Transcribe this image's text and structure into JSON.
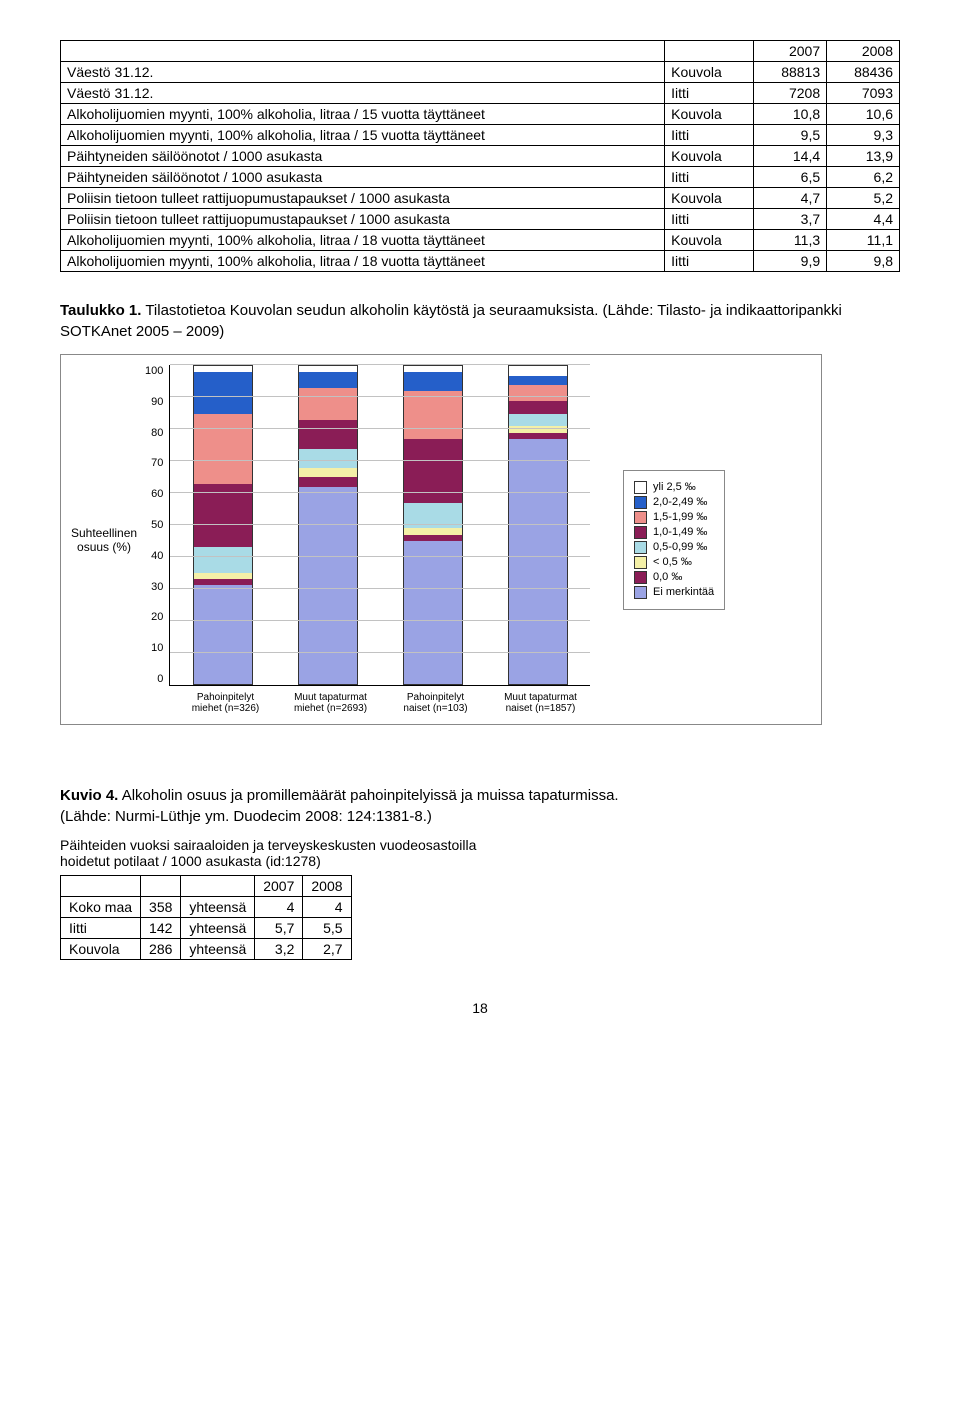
{
  "table1": {
    "year_cols": [
      "2007",
      "2008"
    ],
    "rows": [
      {
        "label": "Väestö 31.12.",
        "place": "Kouvola",
        "v1": "88813",
        "v2": "88436"
      },
      {
        "label": "Väestö 31.12.",
        "place": "Iitti",
        "v1": "7208",
        "v2": "7093"
      },
      {
        "label": "Alkoholijuomien myynti, 100% alkoholia, litraa / 15 vuotta täyttäneet",
        "place": "Kouvola",
        "v1": "10,8",
        "v2": "10,6"
      },
      {
        "label": "Alkoholijuomien myynti, 100% alkoholia, litraa / 15 vuotta täyttäneet",
        "place": "Iitti",
        "v1": "9,5",
        "v2": "9,3"
      },
      {
        "label": "Päihtyneiden säilöönotot / 1000 asukasta",
        "place": "Kouvola",
        "v1": "14,4",
        "v2": "13,9"
      },
      {
        "label": "Päihtyneiden säilöönotot / 1000 asukasta",
        "place": "Iitti",
        "v1": "6,5",
        "v2": "6,2"
      },
      {
        "label": "Poliisin tietoon tulleet rattijuopumustapaukset / 1000 asukasta",
        "place": "Kouvola",
        "v1": "4,7",
        "v2": "5,2"
      },
      {
        "label": "Poliisin tietoon tulleet rattijuopumustapaukset / 1000 asukasta",
        "place": "Iitti",
        "v1": "3,7",
        "v2": "4,4"
      },
      {
        "label": "Alkoholijuomien myynti, 100% alkoholia, litraa / 18 vuotta täyttäneet",
        "place": "Kouvola",
        "v1": "11,3",
        "v2": "11,1"
      },
      {
        "label": "Alkoholijuomien myynti, 100% alkoholia, litraa / 18 vuotta täyttäneet",
        "place": "Iitti",
        "v1": "9,9",
        "v2": "9,8"
      }
    ]
  },
  "caption1": {
    "bold": "Taulukko 1.",
    "text": " Tilastotietoa Kouvolan seudun alkoholin käytöstä ja seuraamuksista. (Lähde: Tilasto- ja indikaattoripankki SOTKAnet 2005 – 2009)"
  },
  "chart": {
    "ylabel": "Suhteellinen\nosuus (%)",
    "ymax": 100,
    "ytick_step": 10,
    "categories": [
      "Pahoinpitelyt miehet (n=326)",
      "Muut tapaturmat miehet (n=2693)",
      "Pahoinpitelyt naiset (n=103)",
      "Muut tapaturmat naiset (n=1857)"
    ],
    "legend": [
      {
        "label": "yli 2,5 ‰",
        "color": "#ffffff"
      },
      {
        "label": "2,0-2,49 ‰",
        "color": "#255fc9"
      },
      {
        "label": "1,5-1,99 ‰",
        "color": "#ee8f8a"
      },
      {
        "label": "1,0-1,49 ‰",
        "color": "#8a1d56"
      },
      {
        "label": "0,5-0,99 ‰",
        "color": "#a9dbe6"
      },
      {
        "label": "< 0,5 ‰",
        "color": "#f4f0a7"
      },
      {
        "label": "0,0 ‰",
        "color": "#8a1d56"
      },
      {
        "label": "Ei merkintää",
        "color": "#9aa3e4"
      }
    ],
    "series_order": [
      "ei",
      "zero",
      "lt05",
      "p05_099",
      "p10_149",
      "p15_199",
      "p20_249",
      "yli25"
    ],
    "series_colors": {
      "ei": "#9aa3e4",
      "zero": "#8a1d56",
      "lt05": "#f4f0a7",
      "p05_099": "#a9dbe6",
      "p10_149": "#8a1d56",
      "p15_199": "#ee8f8a",
      "p20_249": "#255fc9",
      "yli25": "#ffffff"
    },
    "data": [
      {
        "ei": 31,
        "zero": 2,
        "lt05": 2,
        "p05_099": 8,
        "p10_149": 20,
        "p15_199": 22,
        "p20_249": 13,
        "yli25": 2
      },
      {
        "ei": 62,
        "zero": 3,
        "lt05": 3,
        "p05_099": 6,
        "p10_149": 9,
        "p15_199": 10,
        "p20_249": 5,
        "yli25": 2
      },
      {
        "ei": 45,
        "zero": 2,
        "lt05": 2,
        "p05_099": 8,
        "p10_149": 20,
        "p15_199": 15,
        "p20_249": 6,
        "yli25": 2
      },
      {
        "ei": 77,
        "zero": 2,
        "lt05": 2,
        "p05_099": 4,
        "p10_149": 4,
        "p15_199": 5,
        "p20_249": 3,
        "yli25": 3
      }
    ]
  },
  "caption2": {
    "bold": "Kuvio 4.",
    "line1": " Alkoholin osuus ja promillemäärät pahoinpitelyissä ja muissa tapaturmissa.",
    "line2": "(Lähde: Nurmi-Lüthje ym. Duodecim 2008: 124:1381-8.)"
  },
  "table2": {
    "title": "Päihteiden vuoksi sairaaloiden ja terveyskeskusten vuodeosastoilla hoidetut potilaat / 1000 asukasta (id:1278)",
    "year_cols": [
      "2007",
      "2008"
    ],
    "rows": [
      {
        "area": "Koko maa",
        "n": "358",
        "agg": "yhteensä",
        "v1": "4",
        "v2": "4"
      },
      {
        "area": "Iitti",
        "n": "142",
        "agg": "yhteensä",
        "v1": "5,7",
        "v2": "5,5"
      },
      {
        "area": "Kouvola",
        "n": "286",
        "agg": "yhteensä",
        "v1": "3,2",
        "v2": "2,7"
      }
    ]
  },
  "page_number": "18"
}
